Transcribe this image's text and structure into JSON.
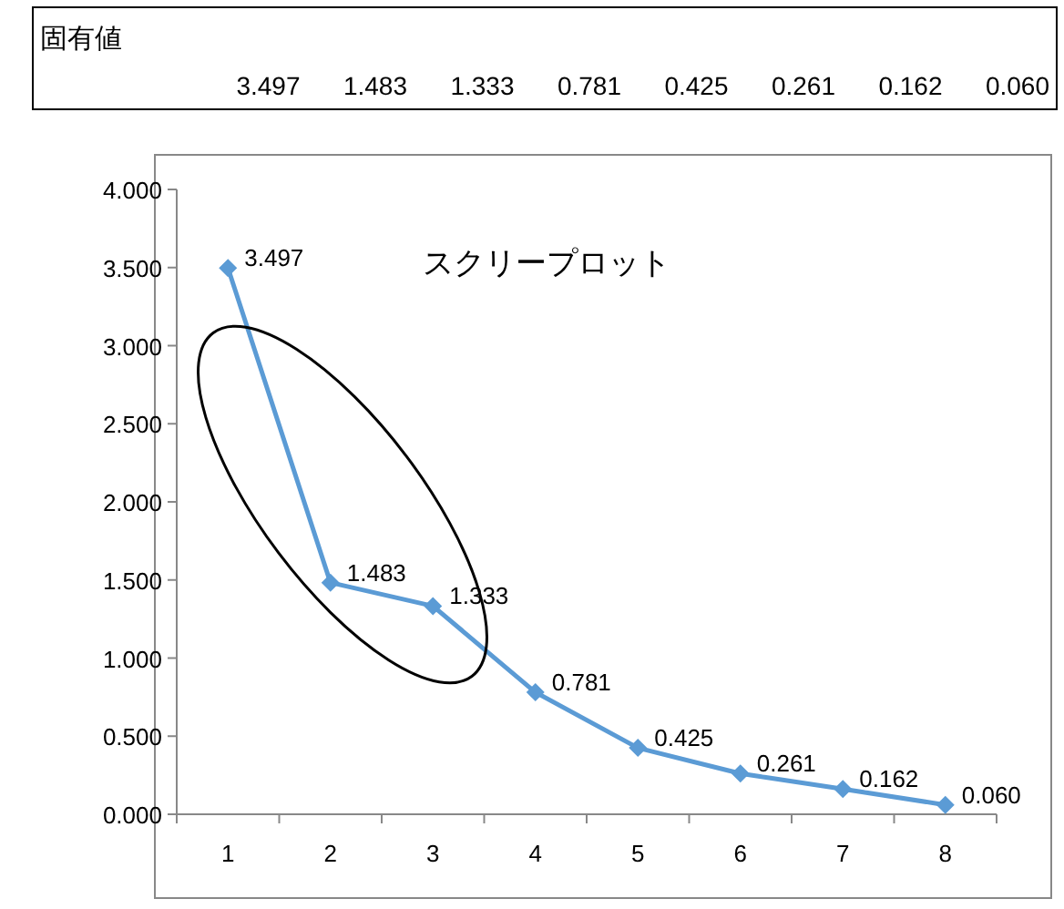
{
  "chart_data": {
    "type": "line",
    "title": "スクリープロット",
    "annotations": [
      "固有値"
    ],
    "categories": [
      "1",
      "2",
      "3",
      "4",
      "5",
      "6",
      "7",
      "8"
    ],
    "values": [
      3.497,
      1.483,
      1.333,
      0.781,
      0.425,
      0.261,
      0.162,
      0.06
    ],
    "value_labels": [
      "3.497",
      "1.483",
      "1.333",
      "0.781",
      "0.425",
      "0.261",
      "0.162",
      "0.060"
    ],
    "color": "#5b9bd5",
    "marker": "diamond",
    "ylim": [
      0,
      4
    ],
    "yticks": [
      {
        "value": 0,
        "label": "0.000"
      },
      {
        "value": 0.5,
        "label": "0.500"
      },
      {
        "value": 1,
        "label": "1.000"
      },
      {
        "value": 1.5,
        "label": "1.500"
      },
      {
        "value": 2,
        "label": "2.000"
      },
      {
        "value": 2.5,
        "label": "2.500"
      },
      {
        "value": 3,
        "label": "3.000"
      },
      {
        "value": 3.5,
        "label": "3.500"
      },
      {
        "value": 4,
        "label": "4.000"
      }
    ]
  }
}
